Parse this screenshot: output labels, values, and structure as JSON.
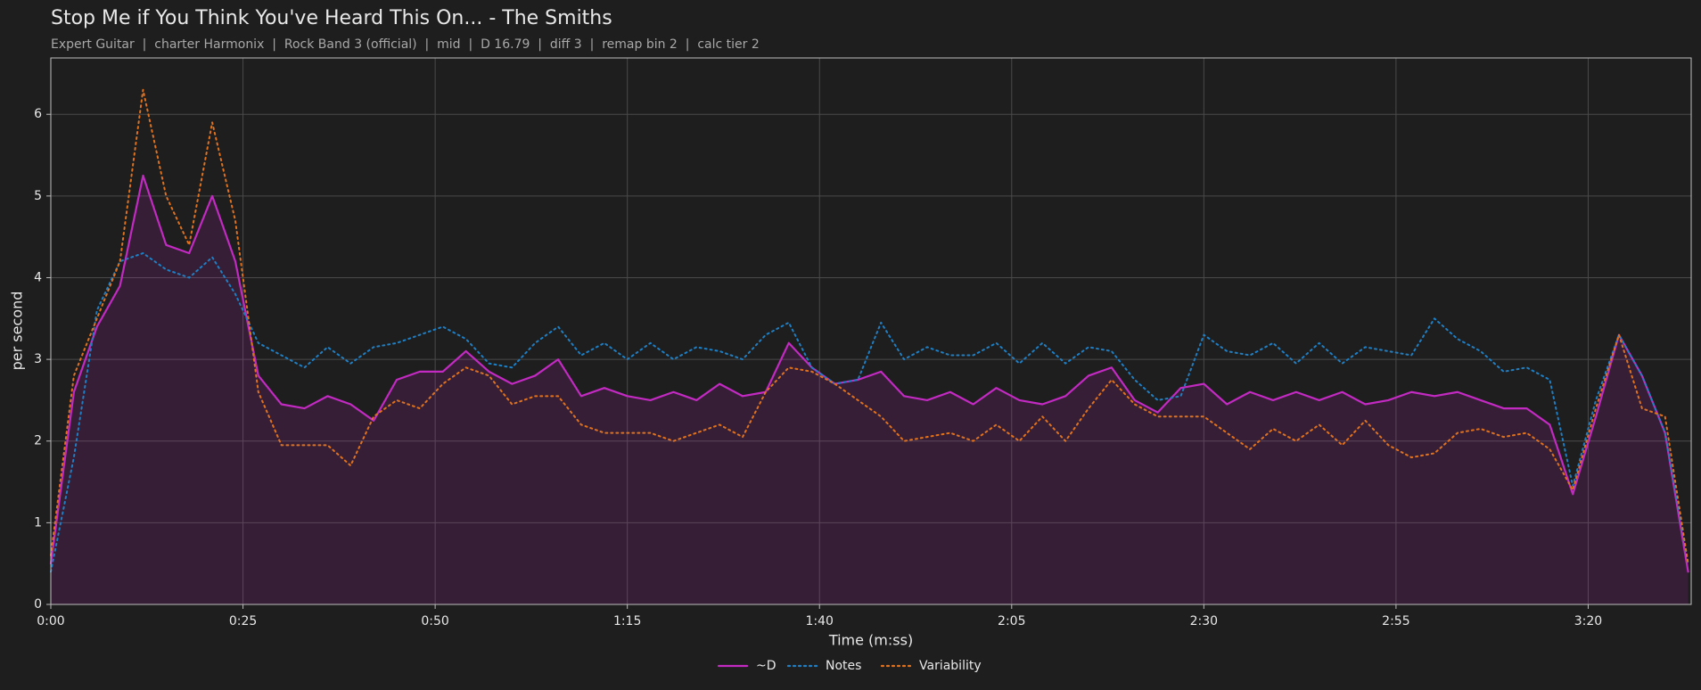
{
  "chart_data": {
    "type": "line",
    "title": "Stop Me if You Think You've Heard This On... - The Smiths",
    "subtitle": "Expert Guitar  |  charter Harmonix  |  Rock Band 3 (official)  |  mid  |  D 16.79  |  diff 3  |  remap bin 2  |  calc tier 2",
    "x_label": "Time (m:ss)",
    "y_label": "per second",
    "x": [
      0,
      3,
      6,
      9,
      12,
      15,
      18,
      21,
      24,
      27,
      30,
      33,
      36,
      39,
      42,
      45,
      48,
      51,
      54,
      57,
      60,
      63,
      66,
      69,
      72,
      75,
      78,
      81,
      84,
      87,
      90,
      93,
      96,
      99,
      102,
      105,
      108,
      111,
      114,
      117,
      120,
      123,
      126,
      129,
      132,
      135,
      138,
      141,
      144,
      147,
      150,
      153,
      156,
      159,
      162,
      165,
      168,
      171,
      174,
      177,
      180,
      183,
      186,
      189,
      192,
      195,
      198,
      201,
      204,
      207,
      210,
      213
    ],
    "series": [
      {
        "name": "~D",
        "color": "#c22ac2",
        "dash": "solid",
        "fill": true,
        "values": [
          0.5,
          2.6,
          3.4,
          3.9,
          5.25,
          4.4,
          4.3,
          5.0,
          4.2,
          2.8,
          2.45,
          2.4,
          2.55,
          2.45,
          2.25,
          2.75,
          2.85,
          2.85,
          3.1,
          2.85,
          2.7,
          2.8,
          3.0,
          2.55,
          2.65,
          2.55,
          2.5,
          2.6,
          2.5,
          2.7,
          2.55,
          2.6,
          3.2,
          2.9,
          2.7,
          2.75,
          2.85,
          2.55,
          2.5,
          2.6,
          2.45,
          2.65,
          2.5,
          2.45,
          2.55,
          2.8,
          2.9,
          2.5,
          2.35,
          2.65,
          2.7,
          2.45,
          2.6,
          2.5,
          2.6,
          2.5,
          2.6,
          2.45,
          2.5,
          2.6,
          2.55,
          2.6,
          2.5,
          2.4,
          2.4,
          2.2,
          1.35,
          2.3,
          3.3,
          2.8,
          2.1,
          0.4
        ]
      },
      {
        "name": "Notes",
        "color": "#1f7fc4",
        "dash": "dotted",
        "values": [
          0.4,
          1.8,
          3.6,
          4.2,
          4.3,
          4.1,
          4.0,
          4.25,
          3.8,
          3.2,
          3.05,
          2.9,
          3.15,
          2.95,
          3.15,
          3.2,
          3.3,
          3.4,
          3.25,
          2.95,
          2.9,
          3.2,
          3.4,
          3.05,
          3.2,
          3.0,
          3.2,
          3.0,
          3.15,
          3.1,
          3.0,
          3.3,
          3.45,
          2.9,
          2.7,
          2.75,
          3.45,
          3.0,
          3.15,
          3.05,
          3.05,
          3.2,
          2.95,
          3.2,
          2.95,
          3.15,
          3.1,
          2.75,
          2.5,
          2.55,
          3.3,
          3.1,
          3.05,
          3.2,
          2.95,
          3.2,
          2.95,
          3.15,
          3.1,
          3.05,
          3.5,
          3.25,
          3.1,
          2.85,
          2.9,
          2.75,
          1.45,
          2.5,
          3.3,
          2.8,
          2.1,
          0.5
        ]
      },
      {
        "name": "Variability",
        "color": "#e0721f",
        "dash": "dotted",
        "values": [
          0.6,
          2.8,
          3.5,
          4.2,
          6.3,
          5.0,
          4.4,
          5.9,
          4.7,
          2.6,
          1.95,
          1.95,
          1.95,
          1.7,
          2.3,
          2.5,
          2.4,
          2.7,
          2.9,
          2.8,
          2.45,
          2.55,
          2.55,
          2.2,
          2.1,
          2.1,
          2.1,
          2.0,
          2.1,
          2.2,
          2.05,
          2.6,
          2.9,
          2.85,
          2.7,
          2.5,
          2.3,
          2.0,
          2.05,
          2.1,
          2.0,
          2.2,
          2.0,
          2.3,
          2.0,
          2.4,
          2.75,
          2.45,
          2.3,
          2.3,
          2.3,
          2.1,
          1.9,
          2.15,
          2.0,
          2.2,
          1.95,
          2.25,
          1.95,
          1.8,
          1.85,
          2.1,
          2.15,
          2.05,
          2.1,
          1.9,
          1.4,
          2.4,
          3.3,
          2.4,
          2.3,
          0.5
        ]
      }
    ],
    "xlim": [
      0,
      213.4
    ],
    "ylim": [
      0,
      6.69
    ],
    "xticks": [
      {
        "value": 0,
        "label": "0:00"
      },
      {
        "value": 25,
        "label": "0:25"
      },
      {
        "value": 50,
        "label": "0:50"
      },
      {
        "value": 75,
        "label": "1:15"
      },
      {
        "value": 100,
        "label": "1:40"
      },
      {
        "value": 125,
        "label": "2:05"
      },
      {
        "value": 150,
        "label": "2:30"
      },
      {
        "value": 175,
        "label": "2:55"
      },
      {
        "value": 200,
        "label": "3:20"
      }
    ],
    "yticks": [
      0,
      1,
      2,
      3,
      4,
      5,
      6
    ],
    "grid": true,
    "legend": "bottom"
  }
}
